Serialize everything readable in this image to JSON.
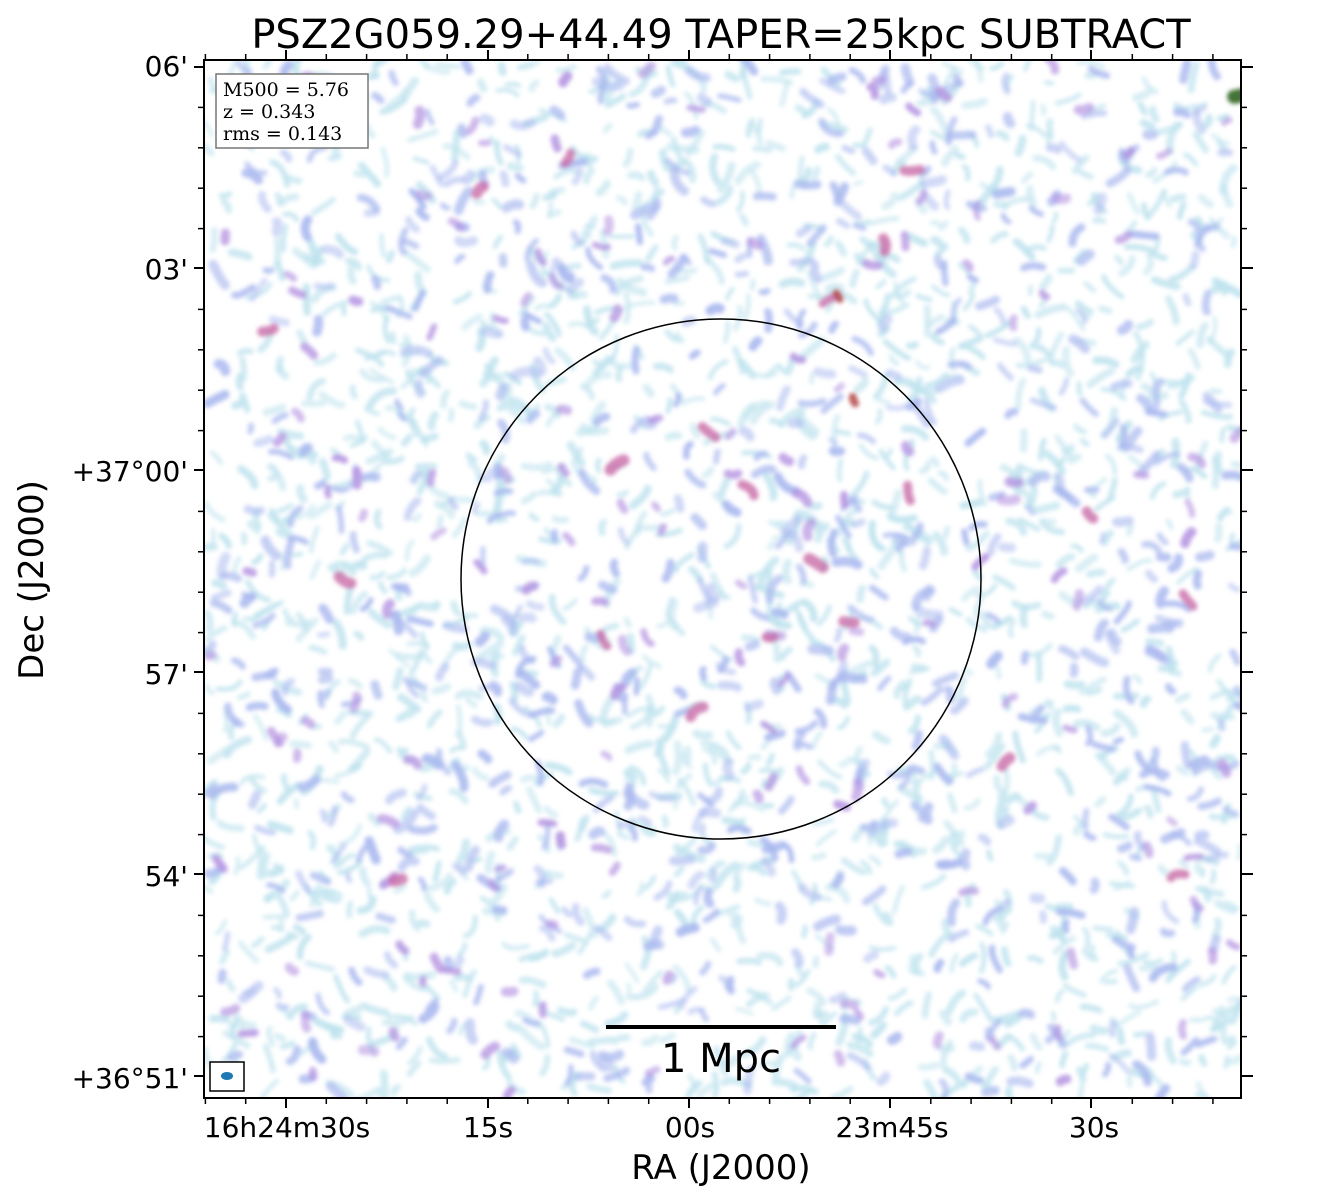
{
  "chart_data": {
    "type": "heatmap",
    "title": "PSZ2G059.29+44.49 TAPER=25kpc SUBTRACT",
    "xlabel": "RA (J2000)",
    "ylabel": "Dec (J2000)",
    "x_ticks": [
      "16h24m30s",
      "15s",
      "00s",
      "23m45s",
      "30s"
    ],
    "y_ticks": [
      "06'",
      "03'",
      "+37°00'",
      "57'",
      "54'",
      "+36°51'"
    ],
    "info_box": [
      "M500 = 5.76",
      "z = 0.343",
      "rms = 0.143"
    ],
    "scale_bar_label": "1 Mpc",
    "colormap": [
      "#bfe3ee",
      "#a9b8ef",
      "#b28fe0",
      "#c96aa8",
      "#b85050",
      "#3a6b2a"
    ],
    "frame_color": "#000000",
    "beam_color": "#1f77b4"
  }
}
